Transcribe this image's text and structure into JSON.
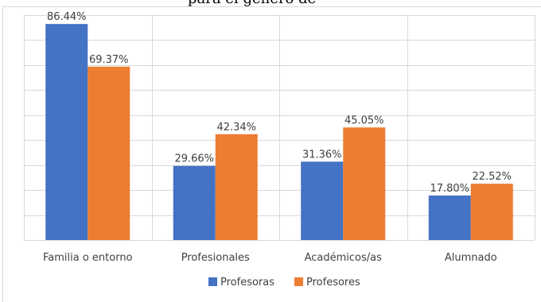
{
  "title_fragment": "para el género de",
  "chart_data": {
    "type": "bar",
    "categories": [
      "Familia o entorno",
      "Profesionales",
      "Académicos/as",
      "Alumnado"
    ],
    "series": [
      {
        "name": "Profesoras",
        "values": [
          86.44,
          29.66,
          31.36,
          17.8
        ],
        "labels": [
          "86.44%",
          "29.66%",
          "31.36%",
          "17.80%"
        ],
        "color": "#4472C4"
      },
      {
        "name": "Profesores",
        "values": [
          69.37,
          42.34,
          45.05,
          22.52
        ],
        "labels": [
          "69.37%",
          "42.34%",
          "45.05%",
          "22.52%"
        ],
        "color": "#ED7D31"
      }
    ],
    "ylim": [
      0,
      90
    ],
    "y_gridline_step": 10,
    "grid": true,
    "legend_position": "bottom"
  }
}
